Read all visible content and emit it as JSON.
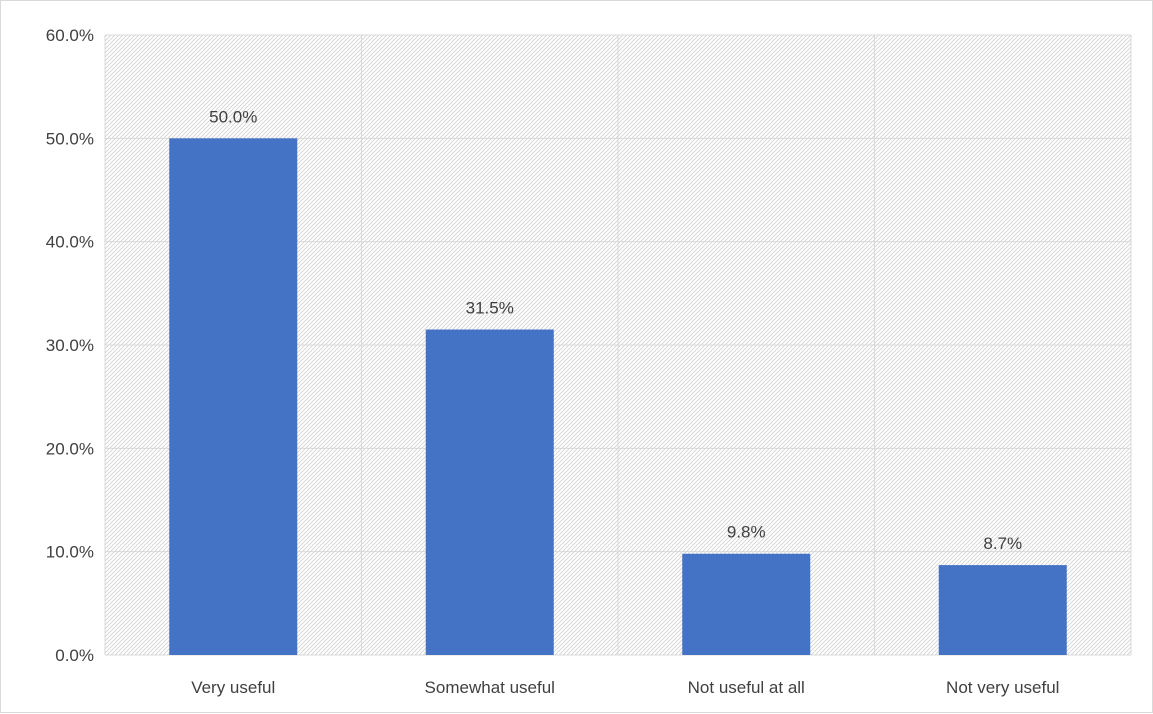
{
  "chart_data": {
    "type": "bar",
    "categories": [
      "Very useful",
      "Somewhat useful",
      "Not useful at all",
      "Not very useful"
    ],
    "values": [
      50.0,
      31.5,
      9.8,
      8.7
    ],
    "data_labels": [
      "50.0%",
      "31.5%",
      "9.8%",
      "8.7%"
    ],
    "y_ticks": [
      "0.0%",
      "10.0%",
      "20.0%",
      "30.0%",
      "40.0%",
      "50.0%",
      "60.0%"
    ],
    "ylim": [
      0,
      60
    ],
    "y_step": 10,
    "grid": true,
    "plot_area_pattern": "diagonal-hatch",
    "colors": {
      "bar": "#4472c4",
      "grid": "#d9d9d9",
      "hatch": "#d0d0d0",
      "text": "#404040"
    }
  }
}
